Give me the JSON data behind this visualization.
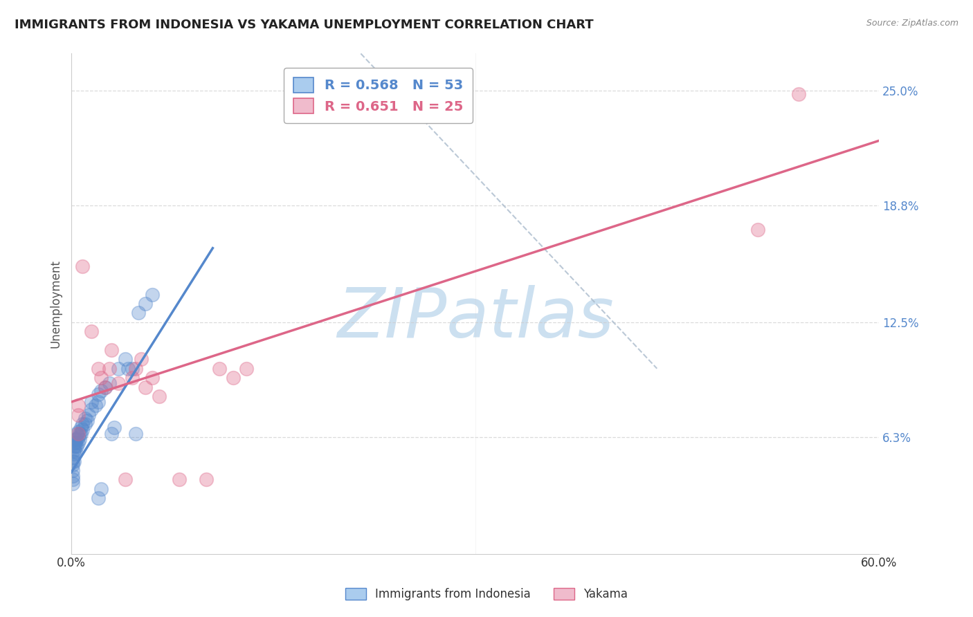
{
  "title": "IMMIGRANTS FROM INDONESIA VS YAKAMA UNEMPLOYMENT CORRELATION CHART",
  "source": "Source: ZipAtlas.com",
  "ylabel": "Unemployment",
  "xlim": [
    0.0,
    0.6
  ],
  "ylim": [
    0.0,
    0.27
  ],
  "xtick_positions": [
    0.0,
    0.15,
    0.3,
    0.45,
    0.6
  ],
  "xticklabels": [
    "0.0%",
    "",
    "",
    "",
    "60.0%"
  ],
  "ytick_positions": [
    0.063,
    0.125,
    0.188,
    0.25
  ],
  "ytick_labels": [
    "6.3%",
    "12.5%",
    "18.8%",
    "25.0%"
  ],
  "background_color": "#ffffff",
  "grid_color": "#cccccc",
  "watermark": "ZIPatlas",
  "watermark_color": "#cce0f0",
  "blue_scatter": [
    [
      0.001,
      0.045
    ],
    [
      0.001,
      0.048
    ],
    [
      0.001,
      0.05
    ],
    [
      0.001,
      0.052
    ],
    [
      0.002,
      0.054
    ],
    [
      0.002,
      0.056
    ],
    [
      0.002,
      0.058
    ],
    [
      0.002,
      0.06
    ],
    [
      0.003,
      0.055
    ],
    [
      0.003,
      0.06
    ],
    [
      0.003,
      0.062
    ],
    [
      0.004,
      0.058
    ],
    [
      0.004,
      0.062
    ],
    [
      0.004,
      0.065
    ],
    [
      0.005,
      0.06
    ],
    [
      0.005,
      0.063
    ],
    [
      0.005,
      0.066
    ],
    [
      0.006,
      0.062
    ],
    [
      0.006,
      0.065
    ],
    [
      0.007,
      0.065
    ],
    [
      0.007,
      0.068
    ],
    [
      0.008,
      0.067
    ],
    [
      0.008,
      0.07
    ],
    [
      0.01,
      0.07
    ],
    [
      0.01,
      0.073
    ],
    [
      0.012,
      0.072
    ],
    [
      0.013,
      0.075
    ],
    [
      0.015,
      0.078
    ],
    [
      0.015,
      0.082
    ],
    [
      0.018,
      0.08
    ],
    [
      0.02,
      0.082
    ],
    [
      0.02,
      0.086
    ],
    [
      0.022,
      0.088
    ],
    [
      0.025,
      0.09
    ],
    [
      0.028,
      0.092
    ],
    [
      0.03,
      0.065
    ],
    [
      0.032,
      0.068
    ],
    [
      0.035,
      0.1
    ],
    [
      0.04,
      0.105
    ],
    [
      0.042,
      0.1
    ],
    [
      0.045,
      0.1
    ],
    [
      0.048,
      0.065
    ],
    [
      0.05,
      0.13
    ],
    [
      0.055,
      0.135
    ],
    [
      0.06,
      0.14
    ],
    [
      0.001,
      0.04
    ],
    [
      0.001,
      0.042
    ],
    [
      0.001,
      0.038
    ],
    [
      0.002,
      0.05
    ],
    [
      0.003,
      0.058
    ],
    [
      0.02,
      0.03
    ],
    [
      0.022,
      0.035
    ]
  ],
  "pink_scatter": [
    [
      0.005,
      0.075
    ],
    [
      0.005,
      0.08
    ],
    [
      0.008,
      0.155
    ],
    [
      0.015,
      0.12
    ],
    [
      0.02,
      0.1
    ],
    [
      0.022,
      0.095
    ],
    [
      0.025,
      0.09
    ],
    [
      0.028,
      0.1
    ],
    [
      0.03,
      0.11
    ],
    [
      0.035,
      0.092
    ],
    [
      0.04,
      0.04
    ],
    [
      0.045,
      0.095
    ],
    [
      0.048,
      0.1
    ],
    [
      0.052,
      0.105
    ],
    [
      0.055,
      0.09
    ],
    [
      0.06,
      0.095
    ],
    [
      0.065,
      0.085
    ],
    [
      0.08,
      0.04
    ],
    [
      0.1,
      0.04
    ],
    [
      0.11,
      0.1
    ],
    [
      0.12,
      0.095
    ],
    [
      0.13,
      0.1
    ],
    [
      0.54,
      0.248
    ],
    [
      0.51,
      0.175
    ],
    [
      0.005,
      0.065
    ]
  ],
  "blue_line": {
    "x0": 0.0,
    "y0": 0.044,
    "x1": 0.105,
    "y1": 0.165
  },
  "pink_line": {
    "x0": 0.0,
    "y0": 0.082,
    "x1": 0.6,
    "y1": 0.223
  },
  "ref_line": {
    "x0": 0.215,
    "y0": 0.27,
    "x1": 0.435,
    "y1": 0.1
  },
  "blue_color": "#5588cc",
  "pink_color": "#dd6688",
  "ref_color": "#aabbcc",
  "legend_blue_text_color": "#5588cc",
  "legend_pink_text_color": "#dd6688",
  "ytick_color": "#5588cc",
  "xtick_color": "#333333"
}
